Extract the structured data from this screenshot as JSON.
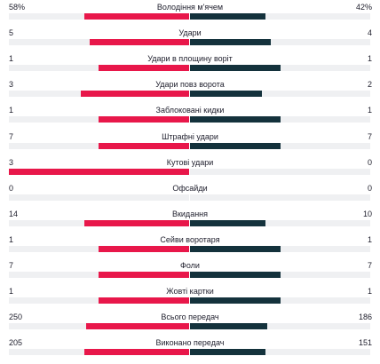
{
  "colors": {
    "home": "#e8174a",
    "away": "#14323c",
    "track": "#eff0f2"
  },
  "stats": [
    {
      "label": "Володіння м'ячем",
      "home": "58%",
      "away": "42%",
      "home_share": 0.58,
      "away_share": 0.42
    },
    {
      "label": "Удари",
      "home": "5",
      "away": "4",
      "home_share": 0.55,
      "away_share": 0.45
    },
    {
      "label": "Удари в площину воріт",
      "home": "1",
      "away": "1",
      "home_share": 0.5,
      "away_share": 0.5
    },
    {
      "label": "Удари повз ворота",
      "home": "3",
      "away": "2",
      "home_share": 0.6,
      "away_share": 0.4
    },
    {
      "label": "Заблоковані кидки",
      "home": "1",
      "away": "1",
      "home_share": 0.5,
      "away_share": 0.5
    },
    {
      "label": "Штрафні удари",
      "home": "7",
      "away": "7",
      "home_share": 0.5,
      "away_share": 0.5
    },
    {
      "label": "Кутові удари",
      "home": "3",
      "away": "0",
      "home_share": 1.0,
      "away_share": 0.0
    },
    {
      "label": "Офсайди",
      "home": "0",
      "away": "0",
      "home_share": 0.0,
      "away_share": 0.0
    },
    {
      "label": "Вкидання",
      "home": "14",
      "away": "10",
      "home_share": 0.58,
      "away_share": 0.42
    },
    {
      "label": "Сейви воротаря",
      "home": "1",
      "away": "1",
      "home_share": 0.5,
      "away_share": 0.5
    },
    {
      "label": "Фоли",
      "home": "7",
      "away": "7",
      "home_share": 0.5,
      "away_share": 0.5
    },
    {
      "label": "Жовті картки",
      "home": "1",
      "away": "1",
      "home_share": 0.5,
      "away_share": 0.5
    },
    {
      "label": "Всього передач",
      "home": "250",
      "away": "186",
      "home_share": 0.57,
      "away_share": 0.43
    },
    {
      "label": "Виконано передач",
      "home": "205",
      "away": "151",
      "home_share": 0.58,
      "away_share": 0.42
    }
  ]
}
